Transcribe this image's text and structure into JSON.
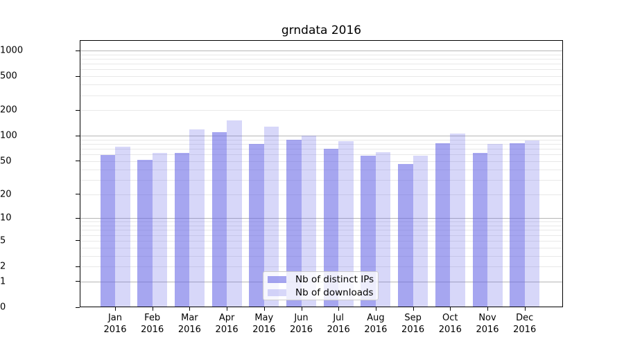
{
  "title": "grndata 2016",
  "colors": {
    "bar_distinct_ips": "rgba(102,102,230,0.58)",
    "bar_downloads": "rgba(102,102,230,0.26)",
    "grid_major": "#b5b5b5",
    "grid_minor": "#e8e8e8",
    "spine": "#000000",
    "legend_bg": "rgba(255,255,255,0.8)",
    "legend_border": "#cccccc"
  },
  "chart_data": {
    "type": "bar",
    "title": "grndata 2016",
    "categories": [
      "Jan 2016",
      "Feb 2016",
      "Mar 2016",
      "Apr 2016",
      "May 2016",
      "Jun 2016",
      "Jul 2016",
      "Aug 2016",
      "Sep 2016",
      "Oct 2016",
      "Nov 2016",
      "Dec 2016"
    ],
    "series": [
      {
        "name": "Nb of distinct IPs",
        "color": "rgba(102,102,230,0.58)",
        "values": [
          58,
          51,
          62,
          109,
          78,
          88,
          69,
          57,
          45,
          80,
          61,
          80
        ]
      },
      {
        "name": "Nb of downloads",
        "color": "rgba(102,102,230,0.26)",
        "values": [
          73,
          61,
          117,
          149,
          126,
          99,
          85,
          63,
          57,
          104,
          78,
          87
        ]
      }
    ],
    "xlabel": "",
    "ylabel": "",
    "yscale": "log1p",
    "ytick_labels": [
      0,
      1,
      2,
      5,
      10,
      20,
      50,
      100,
      200,
      500,
      1000
    ],
    "ygrid_major": [
      1,
      10,
      100,
      1000
    ],
    "ygrid_minor": [
      2,
      3,
      4,
      5,
      6,
      7,
      8,
      9,
      20,
      30,
      40,
      50,
      60,
      70,
      80,
      90,
      200,
      300,
      400,
      500,
      600,
      700,
      800,
      900
    ],
    "ylim": [
      0,
      1300
    ],
    "grid": "horizontal only",
    "legend_position": "inside lower-center"
  }
}
